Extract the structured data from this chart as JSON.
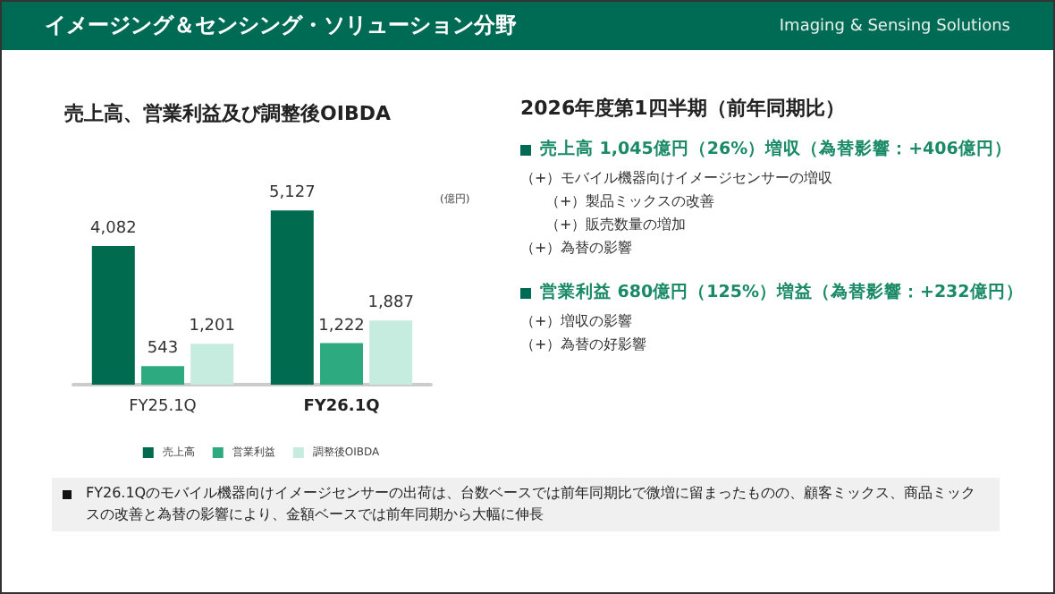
{
  "chart_data": {
    "type": "bar",
    "title": "イメージング＆センシング・ソリューション分野",
    "subtitle": "売上高、営業利益及び調整後OIBDA",
    "categories": [
      "FY25.1Q",
      "FY26.1Q"
    ],
    "series": [
      {
        "name": "売上高",
        "color": "#006b4f",
        "values": [
          4082,
          5127
        ],
        "value_labels": [
          "4,082",
          "5,127"
        ]
      },
      {
        "name": "営業利益",
        "color": "#2eaa80",
        "values": [
          543,
          1222
        ],
        "value_labels": [
          "543",
          "1,222"
        ]
      },
      {
        "name": "調整後OIBDA",
        "color": "#c6ece0",
        "values": [
          1201,
          1887
        ],
        "value_labels": [
          "1,201",
          "1,887"
        ]
      }
    ],
    "legend": "bottom",
    "annotations": [
      "Imaging & Sensing Solutions",
      "(億円)",
      "2026年度第1四半期（前年同期比）",
      "売上高  1,045億円（26%）増収（為替影響：+406億円）",
      "（+）モバイル機器向けイメージセンサーの増収",
      "（+）製品ミックスの改善",
      "（+）販売数量の増加",
      "（+）為替の影響",
      "営業利益  680億円（125%）増益（為替影響：+232億円）",
      "（+）増収の影響",
      "（+）為替の好影響",
      "FY26.1Qのモバイル機器向けイメージセンサーの出荷は、台数ベースでは前年同期比で微増に留まったものの、顧客ミックス、商品ミックスの改善と為替の影響により、金額ベースでは前年同期から大幅に伸長"
    ]
  }
}
